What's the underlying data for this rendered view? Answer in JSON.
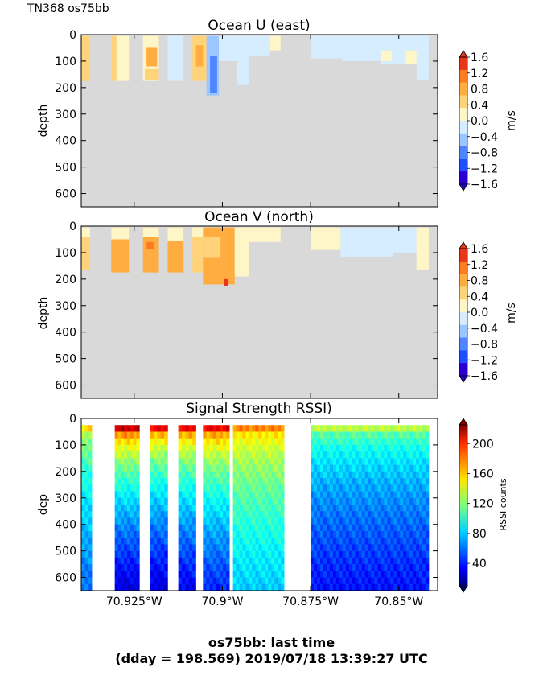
{
  "cruise_label": "TN368 os75bb",
  "footer": {
    "line1": "os75bb: last time",
    "line2": "(dday = 198.569) 2019/07/18 13:39:27 UTC"
  },
  "colors": {
    "nodata": "#d9d9d9",
    "frame": "#000000"
  },
  "chart_data": [
    {
      "type": "heatmap",
      "title": "Ocean U (east)",
      "ylabel": "depth",
      "ylim": [
        650,
        0
      ],
      "yticks": [
        "0",
        "100",
        "200",
        "300",
        "400",
        "500",
        "600"
      ],
      "xlim": [
        -70.94,
        -70.839
      ],
      "xticks": [],
      "colorbar": {
        "label": "m/s",
        "ticks": [
          "1.6",
          "1.2",
          "0.8",
          "0.4",
          "0.0",
          "−0.4",
          "−0.8",
          "−1.2",
          "−1.6"
        ],
        "min": -1.6,
        "max": 1.6
      },
      "columns": [
        {
          "x0": -70.94,
          "x1": -70.9375,
          "bottom": 175,
          "top": 5,
          "v": 0.6
        },
        {
          "x0": -70.9315,
          "x1": -70.93,
          "bottom": 175,
          "top": 5,
          "v": 0.4
        },
        {
          "x0": -70.93,
          "x1": -70.9265,
          "bottom": 175,
          "top": 5,
          "v": 0.1
        },
        {
          "x0": -70.9225,
          "x1": -70.918,
          "bottom": 175,
          "top": 5,
          "v": 0.3
        },
        {
          "x0": -70.9155,
          "x1": -70.911,
          "bottom": 175,
          "top": 5,
          "v": -0.3
        },
        {
          "x0": -70.9085,
          "x1": -70.9045,
          "bottom": 175,
          "top": 5,
          "v": 0.5
        },
        {
          "x0": -70.9045,
          "x1": -70.901,
          "bottom": 230,
          "top": 5,
          "v": -0.5
        },
        {
          "x0": -70.901,
          "x1": -70.896,
          "bottom": 100,
          "top": 5,
          "v": -0.3
        },
        {
          "x0": -70.896,
          "x1": -70.8925,
          "bottom": 190,
          "top": 5,
          "v": -0.1
        },
        {
          "x0": -70.8925,
          "x1": -70.8865,
          "bottom": 80,
          "top": 5,
          "v": -0.1
        },
        {
          "x0": -70.8865,
          "x1": -70.8835,
          "bottom": 60,
          "top": 5,
          "v": 0.05
        },
        {
          "x0": -70.875,
          "x1": -70.866,
          "bottom": 90,
          "top": 5,
          "v": -0.2
        },
        {
          "x0": -70.866,
          "x1": -70.855,
          "bottom": 100,
          "top": 5,
          "v": -0.15
        },
        {
          "x0": -70.855,
          "x1": -70.845,
          "bottom": 110,
          "top": 5,
          "v": -0.25
        },
        {
          "x0": -70.845,
          "x1": -70.8415,
          "bottom": 170,
          "top": 5,
          "v": -0.2
        }
      ],
      "patches": [
        {
          "x0": -70.9215,
          "x1": -70.9185,
          "d0": 50,
          "d1": 120,
          "v": 0.7
        },
        {
          "x0": -70.922,
          "x1": -70.918,
          "d0": 130,
          "d1": 170,
          "v": 0.6
        },
        {
          "x0": -70.9075,
          "x1": -70.9055,
          "d0": 40,
          "d1": 120,
          "v": 0.8
        },
        {
          "x0": -70.9035,
          "x1": -70.9015,
          "d0": 80,
          "d1": 220,
          "v": -0.7
        },
        {
          "x0": -70.855,
          "x1": -70.852,
          "d0": 60,
          "d1": 100,
          "v": 0.1
        },
        {
          "x0": -70.848,
          "x1": -70.845,
          "d0": 60,
          "d1": 110,
          "v": 0.1
        }
      ]
    },
    {
      "type": "heatmap",
      "title": "Ocean V (north)",
      "ylabel": "depth",
      "ylim": [
        650,
        0
      ],
      "yticks": [
        "0",
        "100",
        "200",
        "300",
        "400",
        "500",
        "600"
      ],
      "xlim": [
        -70.94,
        -70.839
      ],
      "xticks": [],
      "colorbar": {
        "label": "m/s",
        "ticks": [
          "1.6",
          "1.2",
          "0.8",
          "0.4",
          "0.0",
          "−0.4",
          "−0.8",
          "−1.2",
          "−1.6"
        ],
        "min": -1.6,
        "max": 1.6
      },
      "columns": [
        {
          "x0": -70.94,
          "x1": -70.9375,
          "bottom": 165,
          "top": 5,
          "v": 0.6
        },
        {
          "x0": -70.9315,
          "x1": -70.9265,
          "bottom": 175,
          "top": 5,
          "v": 0.7
        },
        {
          "x0": -70.9225,
          "x1": -70.918,
          "bottom": 175,
          "top": 5,
          "v": 0.7
        },
        {
          "x0": -70.9155,
          "x1": -70.911,
          "bottom": 175,
          "top": 5,
          "v": 0.7
        },
        {
          "x0": -70.9085,
          "x1": -70.9055,
          "bottom": 175,
          "top": 5,
          "v": 0.6
        },
        {
          "x0": -70.9055,
          "x1": -70.8965,
          "bottom": 220,
          "top": 5,
          "v": 0.7
        },
        {
          "x0": -70.8965,
          "x1": -70.8925,
          "bottom": 190,
          "top": 5,
          "v": 0.1
        },
        {
          "x0": -70.8925,
          "x1": -70.8835,
          "bottom": 60,
          "top": 5,
          "v": 0.15
        },
        {
          "x0": -70.875,
          "x1": -70.8665,
          "bottom": 90,
          "top": 5,
          "v": 0.1
        },
        {
          "x0": -70.8665,
          "x1": -70.8515,
          "bottom": 115,
          "top": 5,
          "v": -0.2
        },
        {
          "x0": -70.8515,
          "x1": -70.845,
          "bottom": 100,
          "top": 5,
          "v": -0.15
        },
        {
          "x0": -70.845,
          "x1": -70.8415,
          "bottom": 165,
          "top": 5,
          "v": 0.1
        }
      ],
      "patches": [
        {
          "x0": -70.94,
          "x1": -70.9375,
          "d0": 5,
          "d1": 40,
          "v": 0.2
        },
        {
          "x0": -70.9315,
          "x1": -70.9265,
          "d0": 5,
          "d1": 50,
          "v": 0.2
        },
        {
          "x0": -70.9225,
          "x1": -70.918,
          "d0": 5,
          "d1": 40,
          "v": 0.2
        },
        {
          "x0": -70.9215,
          "x1": -70.9195,
          "d0": 60,
          "d1": 85,
          "v": 1.2
        },
        {
          "x0": -70.9155,
          "x1": -70.911,
          "d0": 5,
          "d1": 55,
          "v": 0.2
        },
        {
          "x0": -70.9085,
          "x1": -70.9055,
          "d0": 5,
          "d1": 40,
          "v": 0.2
        },
        {
          "x0": -70.9055,
          "x1": -70.9005,
          "d0": 40,
          "d1": 120,
          "v": 0.5
        },
        {
          "x0": -70.8995,
          "x1": -70.8985,
          "d0": 200,
          "d1": 225,
          "v": 1.4
        }
      ]
    },
    {
      "type": "heatmap",
      "title": "Signal Strength RSSI)",
      "ylabel": "dep",
      "ylim": [
        650,
        0
      ],
      "yticks": [
        "0",
        "100",
        "200",
        "300",
        "400",
        "500",
        "600"
      ],
      "xlim": [
        -70.94,
        -70.839
      ],
      "xticks": [
        {
          "x": -70.925,
          "label": "70.925°W"
        },
        {
          "x": -70.9,
          "label": "70.9°W"
        },
        {
          "x": -70.875,
          "label": "70.875°W"
        },
        {
          "x": -70.85,
          "label": "70.85°W"
        }
      ],
      "colorbar": {
        "label": "RSSI counts",
        "ticks": [
          "200",
          "160",
          "120",
          "80",
          "40"
        ],
        "min": 10,
        "max": 225
      },
      "columns": [
        {
          "x0": -70.94,
          "x1": -70.937,
          "top_rssi": 150,
          "bottom_rssi": 60
        },
        {
          "x0": -70.9305,
          "x1": -70.9235,
          "top_rssi": 210,
          "bottom_rssi": 30
        },
        {
          "x0": -70.9205,
          "x1": -70.9155,
          "top_rssi": 200,
          "bottom_rssi": 30
        },
        {
          "x0": -70.9125,
          "x1": -70.9075,
          "top_rssi": 200,
          "bottom_rssi": 35
        },
        {
          "x0": -70.9055,
          "x1": -70.898,
          "top_rssi": 200,
          "bottom_rssi": 45
        },
        {
          "x0": -70.897,
          "x1": -70.8825,
          "top_rssi": 170,
          "bottom_rssi": 80
        },
        {
          "x0": -70.875,
          "x1": -70.8415,
          "top_rssi": 130,
          "bottom_rssi": 40
        }
      ]
    }
  ]
}
